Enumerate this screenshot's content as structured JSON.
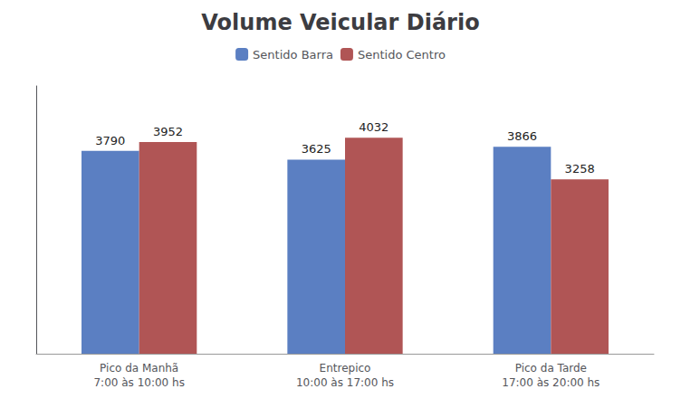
{
  "chart_data": {
    "type": "bar",
    "title": "Volume Veicular Diário",
    "categories": [
      "Pico da Manhã\n7:00 às 10:00 hs",
      "Entrepico\n10:00 às 17:00 hs",
      "Pico da Tarde\n17:00 às 20:00 hs"
    ],
    "series": [
      {
        "name": "Sentido Barra",
        "values": [
          3790,
          3625,
          3866
        ],
        "color": "#5B7FC2"
      },
      {
        "name": "Sentido Centro",
        "values": [
          3952,
          4032,
          3258
        ],
        "color": "#B05555"
      }
    ],
    "ylim": [
      0,
      5000
    ],
    "grid": false,
    "legend": "top",
    "data_labels": true,
    "tick_labels": "x"
  }
}
